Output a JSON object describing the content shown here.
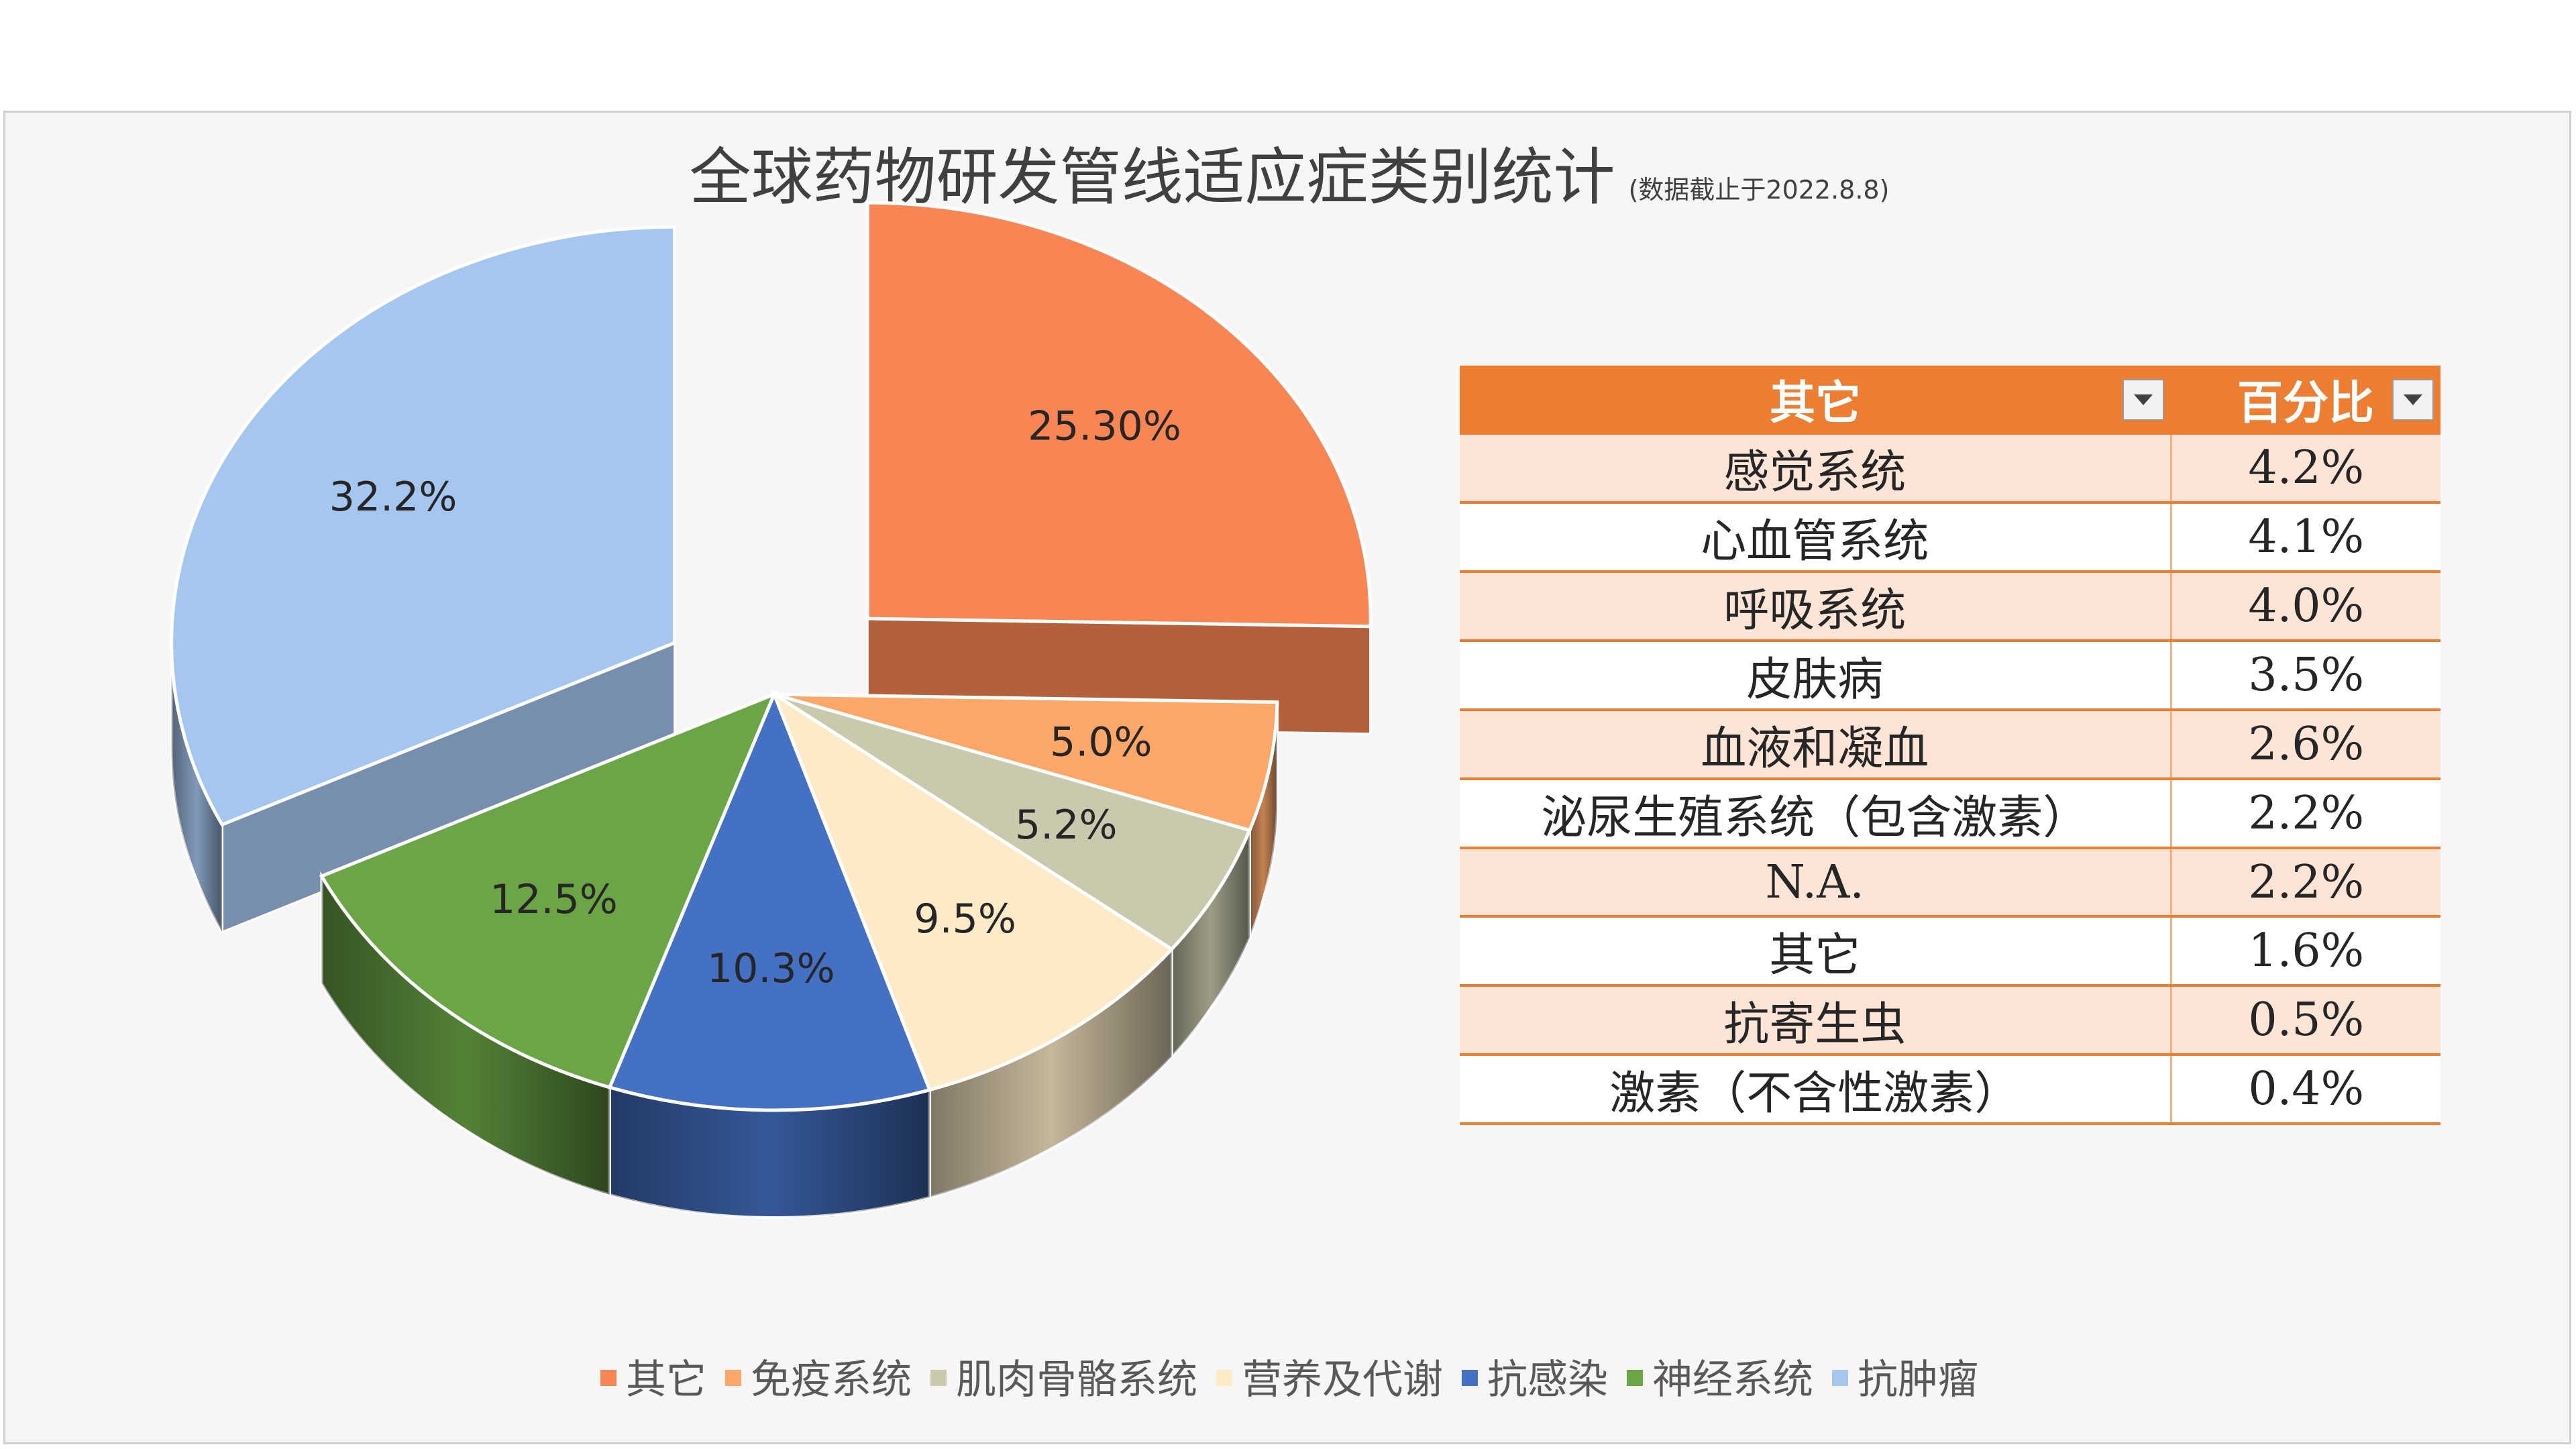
{
  "chart_data": {
    "type": "pie",
    "title": "全球药物研发管线适应症类别统计",
    "subtitle": "(数据截止于2022.8.8)",
    "slices": [
      {
        "name": "其它",
        "value": 25.3,
        "label": "25.30%",
        "color": "#f88655"
      },
      {
        "name": "免疫系统",
        "value": 5.0,
        "label": "5.0%",
        "color": "#fba769"
      },
      {
        "name": "肌肉骨骼系统",
        "value": 5.2,
        "label": "5.2%",
        "color": "#c9c9ad"
      },
      {
        "name": "营养及代谢",
        "value": 9.5,
        "label": "9.5%",
        "color": "#fdebc7"
      },
      {
        "name": "抗感染",
        "value": 10.3,
        "label": "10.3%",
        "color": "#4471c4"
      },
      {
        "name": "神经系统",
        "value": 12.5,
        "label": "12.5%",
        "color": "#6ca546"
      },
      {
        "name": "抗肿瘤",
        "value": 32.2,
        "label": "32.2%",
        "color": "#a5c6ef"
      }
    ],
    "legend_position": "bottom"
  },
  "table": {
    "headers": [
      "其它",
      "百分比"
    ],
    "rows": [
      [
        "感觉系统",
        "4.2%"
      ],
      [
        "心血管系统",
        "4.1%"
      ],
      [
        "呼吸系统",
        "4.0%"
      ],
      [
        "皮肤病",
        "3.5%"
      ],
      [
        "血液和凝血",
        "2.6%"
      ],
      [
        "泌尿生殖系统（包含激素）",
        "2.2%"
      ],
      [
        "N.A.",
        "2.2%"
      ],
      [
        "其它",
        "1.6%"
      ],
      [
        "抗寄生虫",
        "0.5%"
      ],
      [
        "激素（不含性激素）",
        "0.4%"
      ]
    ]
  },
  "colors": {
    "table_header": "#ed7d31",
    "table_band": "#fce4d6"
  }
}
